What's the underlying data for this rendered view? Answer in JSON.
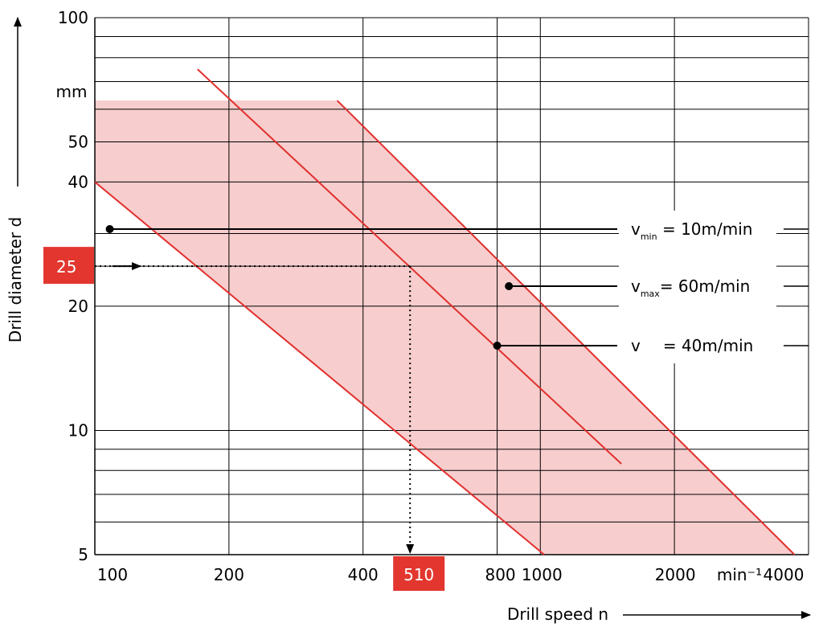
{
  "chart_data": {
    "type": "line",
    "x_scale": "log",
    "y_scale": "log",
    "xlim": [
      100,
      4000
    ],
    "ylim": [
      5,
      100
    ],
    "grid": true,
    "xlabel": "Drill speed n",
    "ylabel": "Drill diameter d",
    "x_unit": "min⁻¹",
    "y_unit": "mm",
    "x_ticks": [
      {
        "value": 100,
        "label": "100"
      },
      {
        "value": 200,
        "label": "200"
      },
      {
        "value": 400,
        "label": "400"
      },
      {
        "value": 800,
        "label": "800"
      },
      {
        "value": 1000,
        "label": "1000"
      },
      {
        "value": 2000,
        "label": "2000"
      },
      {
        "value": 4000,
        "label": "4000"
      }
    ],
    "y_ticks": [
      {
        "value": 100,
        "label": "100"
      },
      {
        "value": 50,
        "label": "50"
      },
      {
        "value": 40,
        "label": "40"
      },
      {
        "value": 20,
        "label": "20"
      },
      {
        "value": 10,
        "label": "10"
      },
      {
        "value": 5,
        "label": "5"
      }
    ],
    "y_grid": [
      100,
      90,
      80,
      70,
      60,
      50,
      40,
      30,
      25,
      20,
      10,
      9,
      8,
      7,
      6,
      5
    ],
    "region": {
      "color": "#f7cdcd",
      "points": [
        [
          100,
          63
        ],
        [
          350,
          63
        ],
        [
          3720,
          5
        ],
        [
          1020,
          5
        ],
        [
          100,
          40
        ]
      ]
    },
    "series": [
      {
        "label_main": "v",
        "label_sub": "min",
        "label_rest": " = 10m/min",
        "color": "#e0302d",
        "x": [
          100,
          1020
        ],
        "y": [
          40,
          5
        ],
        "marker": [
          108,
          36.8
        ]
      },
      {
        "label_main": "v",
        "label_sub": "max",
        "label_rest": "= 60m/min",
        "color": "#e0302d",
        "x": [
          350,
          3720
        ],
        "y": [
          63,
          5
        ],
        "marker": [
          850,
          23.8
        ]
      },
      {
        "label_main": "v",
        "label_sub": "",
        "label_rest": "   = 40m/min",
        "color": "#e0302d",
        "x": [
          170,
          1520
        ],
        "y": [
          75,
          8.3
        ],
        "marker": [
          800,
          17
        ]
      }
    ],
    "example": {
      "d": 25,
      "n": 510,
      "d_label": "25",
      "n_label": "510",
      "color": "#e2362f"
    }
  }
}
